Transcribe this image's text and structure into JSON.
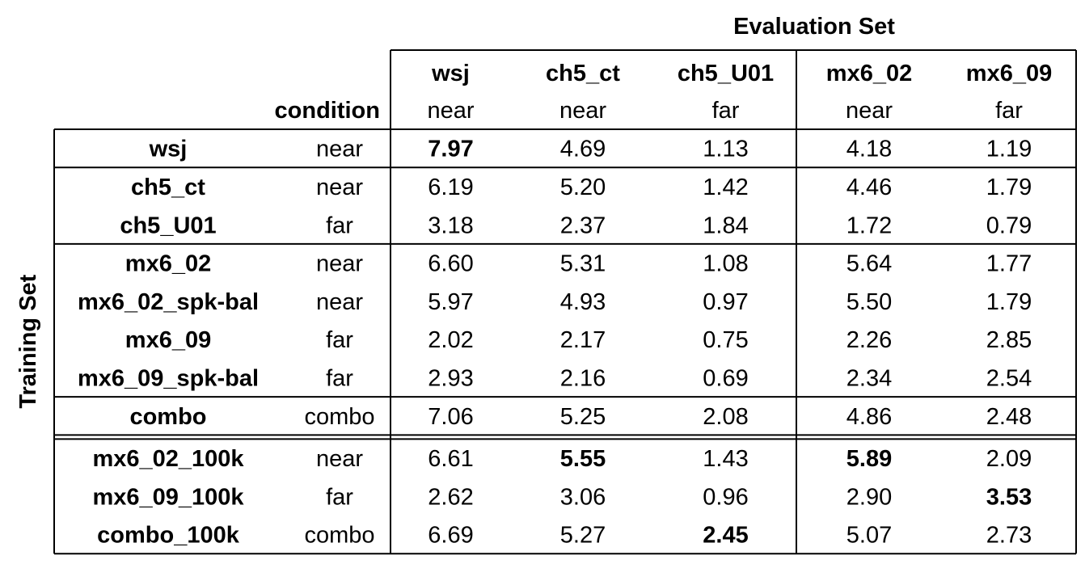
{
  "chart_data": {
    "type": "table",
    "column_axis_label": "Evaluation Set",
    "row_axis_label": "Training Set",
    "condition_header": "condition",
    "columns": [
      {
        "name": "wsj",
        "condition": "near"
      },
      {
        "name": "ch5_ct",
        "condition": "near"
      },
      {
        "name": "ch5_U01",
        "condition": "far"
      },
      {
        "name": "mx6_02",
        "condition": "near"
      },
      {
        "name": "mx6_09",
        "condition": "far"
      }
    ],
    "rows": [
      {
        "name": "wsj",
        "condition": "near",
        "values": [
          "7.97",
          "4.69",
          "1.13",
          "4.18",
          "1.19"
        ],
        "bold": [
          true,
          false,
          false,
          false,
          false
        ]
      },
      {
        "name": "ch5_ct",
        "condition": "near",
        "values": [
          "6.19",
          "5.20",
          "1.42",
          "4.46",
          "1.79"
        ],
        "bold": [
          false,
          false,
          false,
          false,
          false
        ]
      },
      {
        "name": "ch5_U01",
        "condition": "far",
        "values": [
          "3.18",
          "2.37",
          "1.84",
          "1.72",
          "0.79"
        ],
        "bold": [
          false,
          false,
          false,
          false,
          false
        ]
      },
      {
        "name": "mx6_02",
        "condition": "near",
        "values": [
          "6.60",
          "5.31",
          "1.08",
          "5.64",
          "1.77"
        ],
        "bold": [
          false,
          false,
          false,
          false,
          false
        ]
      },
      {
        "name": "mx6_02_spk-bal",
        "condition": "near",
        "values": [
          "5.97",
          "4.93",
          "0.97",
          "5.50",
          "1.79"
        ],
        "bold": [
          false,
          false,
          false,
          false,
          false
        ]
      },
      {
        "name": "mx6_09",
        "condition": "far",
        "values": [
          "2.02",
          "2.17",
          "0.75",
          "2.26",
          "2.85"
        ],
        "bold": [
          false,
          false,
          false,
          false,
          false
        ]
      },
      {
        "name": "mx6_09_spk-bal",
        "condition": "far",
        "values": [
          "2.93",
          "2.16",
          "0.69",
          "2.34",
          "2.54"
        ],
        "bold": [
          false,
          false,
          false,
          false,
          false
        ]
      },
      {
        "name": "combo",
        "condition": "combo",
        "values": [
          "7.06",
          "5.25",
          "2.08",
          "4.86",
          "2.48"
        ],
        "bold": [
          false,
          false,
          false,
          false,
          false
        ]
      },
      {
        "name": "mx6_02_100k",
        "condition": "near",
        "values": [
          "6.61",
          "5.55",
          "1.43",
          "5.89",
          "2.09"
        ],
        "bold": [
          false,
          true,
          false,
          true,
          false
        ]
      },
      {
        "name": "mx6_09_100k",
        "condition": "far",
        "values": [
          "2.62",
          "3.06",
          "0.96",
          "2.90",
          "3.53"
        ],
        "bold": [
          false,
          false,
          false,
          false,
          true
        ]
      },
      {
        "name": "combo_100k",
        "condition": "combo",
        "values": [
          "6.69",
          "5.27",
          "2.45",
          "5.07",
          "2.73"
        ],
        "bold": [
          false,
          false,
          true,
          false,
          false
        ]
      }
    ],
    "row_groups": [
      [
        0
      ],
      [
        1,
        2
      ],
      [
        3,
        4,
        5,
        6
      ],
      [
        7
      ],
      [
        8,
        9,
        10
      ]
    ],
    "double_rule_before_row": 8
  }
}
